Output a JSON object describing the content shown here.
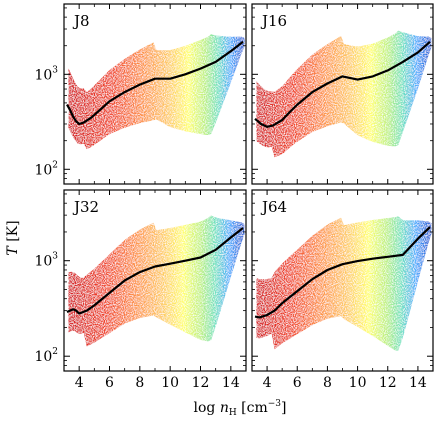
{
  "figure": {
    "xlabel_prefix": "log",
    "xlabel_var": "n",
    "xlabel_sub": "H",
    "xlabel_unit_open": " [cm",
    "xlabel_unit_exp": "−3",
    "xlabel_unit_close": "]",
    "ylabel_var": "T",
    "ylabel_unit": " [K]",
    "ytick_base": "10",
    "ytick_exps": [
      "2",
      "3"
    ],
    "xtick_labels": [
      "4",
      "6",
      "8",
      "10",
      "12",
      "14"
    ]
  },
  "chart_data": [
    {
      "type": "scatter",
      "title": "J8",
      "xlim": [
        3,
        15
      ],
      "ylim": [
        70,
        5500
      ],
      "yscale": "log",
      "xticks": [
        4,
        6,
        8,
        10,
        12,
        14
      ],
      "yticks": [
        100,
        1000
      ],
      "color_map": "jet (blue → red, point density)",
      "mean_line": {
        "x": [
          3.2,
          3.4,
          3.6,
          3.8,
          4.0,
          4.3,
          4.8,
          5.5,
          6.0,
          7.0,
          8.0,
          9.0,
          10.0,
          11.0,
          12.0,
          13.0,
          14.0,
          14.8
        ],
        "y": [
          480,
          420,
          360,
          320,
          300,
          310,
          350,
          440,
          520,
          650,
          780,
          900,
          900,
          1000,
          1150,
          1350,
          1750,
          2200
        ]
      }
    },
    {
      "type": "scatter",
      "title": "J16",
      "xlim": [
        3,
        15
      ],
      "ylim": [
        70,
        5500
      ],
      "yscale": "log",
      "xticks": [
        4,
        6,
        8,
        10,
        12,
        14
      ],
      "yticks": [
        100,
        1000
      ],
      "color_map": "jet (blue → red, point density)",
      "mean_line": {
        "x": [
          3.2,
          3.4,
          3.6,
          3.8,
          4.0,
          4.4,
          5.0,
          5.5,
          6.0,
          7.0,
          8.0,
          9.0,
          10.0,
          11.0,
          12.0,
          13.0,
          14.0,
          14.8
        ],
        "y": [
          340,
          320,
          300,
          290,
          280,
          290,
          330,
          400,
          480,
          650,
          800,
          950,
          880,
          950,
          1100,
          1350,
          1700,
          2200
        ]
      }
    },
    {
      "type": "scatter",
      "title": "J32",
      "xlim": [
        3,
        15
      ],
      "ylim": [
        70,
        5500
      ],
      "yscale": "log",
      "xticks": [
        4,
        6,
        8,
        10,
        12,
        14
      ],
      "yticks": [
        100,
        1000
      ],
      "color_map": "jet (blue → red, point density)",
      "mean_line": {
        "x": [
          3.2,
          3.4,
          3.6,
          3.8,
          4.0,
          4.5,
          5.0,
          6.0,
          7.0,
          8.0,
          9.0,
          10.0,
          11.0,
          12.0,
          13.0,
          14.0,
          14.8
        ],
        "y": [
          290,
          300,
          310,
          300,
          280,
          300,
          340,
          460,
          620,
          760,
          870,
          930,
          1000,
          1080,
          1300,
          1750,
          2200
        ]
      }
    },
    {
      "type": "scatter",
      "title": "J64",
      "xlim": [
        3,
        15
      ],
      "ylim": [
        70,
        5500
      ],
      "yscale": "log",
      "xticks": [
        4,
        6,
        8,
        10,
        12,
        14
      ],
      "yticks": [
        100,
        1000
      ],
      "color_map": "jet (blue → red, point density)",
      "mean_line": {
        "x": [
          3.2,
          3.5,
          4.0,
          4.5,
          5.0,
          6.0,
          7.0,
          8.0,
          9.0,
          10.0,
          11.0,
          12.0,
          13.0,
          14.0,
          14.8
        ],
        "y": [
          260,
          255,
          270,
          300,
          360,
          480,
          640,
          800,
          920,
          990,
          1050,
          1100,
          1150,
          1700,
          2250
        ]
      }
    }
  ]
}
